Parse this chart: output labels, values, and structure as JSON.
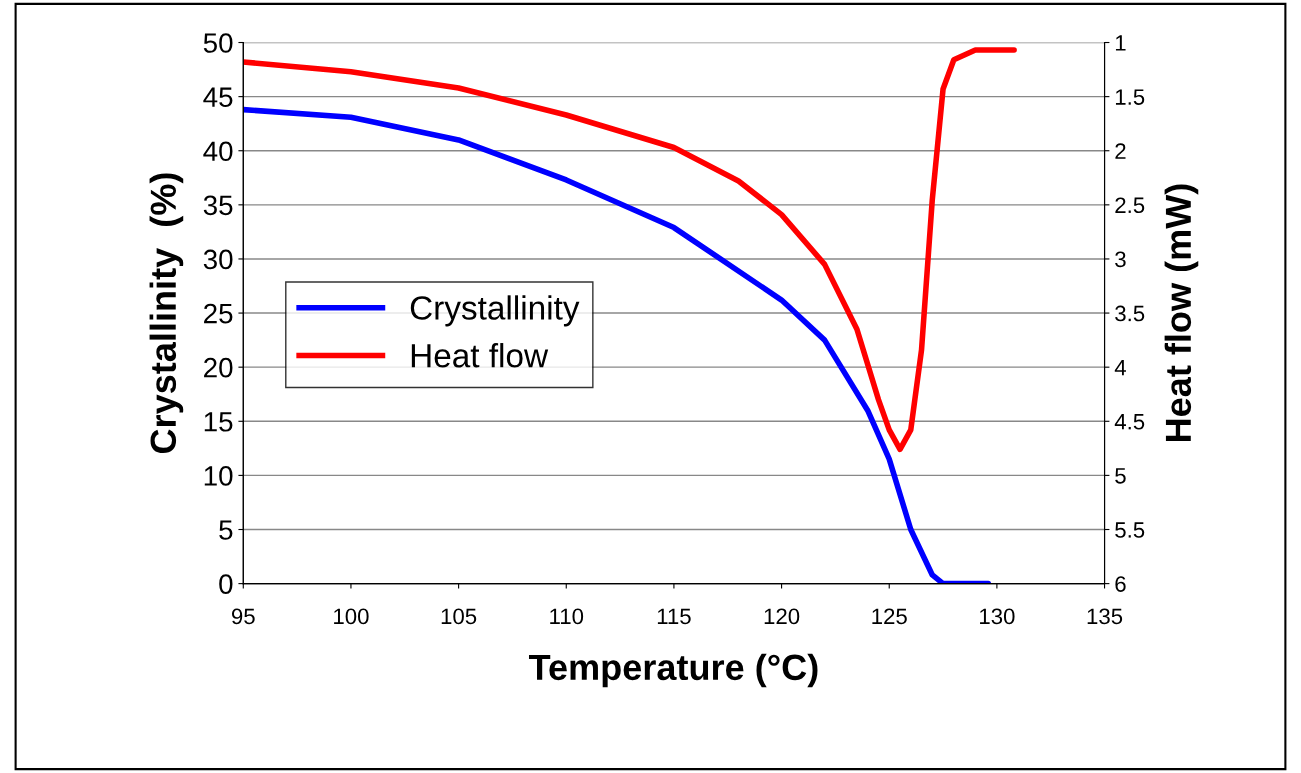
{
  "chart_data": {
    "type": "line",
    "xlabel": "Temperature (°C)",
    "ylabel": "Crystallinity  (%)",
    "y2label": "Heat flow (mW)",
    "xlim": [
      95,
      135
    ],
    "xticks": [
      95,
      100,
      105,
      110,
      115,
      120,
      125,
      130,
      135
    ],
    "ylim": [
      0,
      50
    ],
    "yticks": [
      0,
      5,
      10,
      15,
      20,
      25,
      30,
      35,
      40,
      45,
      50
    ],
    "y2lim": [
      6,
      1
    ],
    "y2ticks": [
      1,
      1.5,
      2,
      2.5,
      3,
      3.5,
      4,
      4.5,
      5,
      5.5,
      6
    ],
    "grid": "y",
    "legend": "left",
    "marker": "none",
    "line_style": "solid",
    "series": [
      {
        "name": "Crystallinity",
        "color": "#0000ff",
        "x": [
          95,
          100,
          105,
          110,
          115,
          120,
          122,
          124,
          125,
          126,
          127,
          127.5,
          129.6
        ],
        "values": [
          43.8,
          43.1,
          41.0,
          37.3,
          32.9,
          26.2,
          22.5,
          16.0,
          11.5,
          5.0,
          0.8,
          0,
          0
        ]
      },
      {
        "name": "Heat flow",
        "color": "#ff0000",
        "axis": "y2",
        "x": [
          95,
          100,
          105,
          110,
          115,
          118,
          120,
          122,
          123.5,
          124.5,
          125,
          125.5,
          126,
          126.5,
          127,
          127.5,
          128,
          129,
          130.8
        ],
        "values": [
          1.18,
          1.27,
          1.42,
          1.67,
          1.97,
          2.28,
          2.59,
          3.05,
          3.65,
          4.3,
          4.58,
          4.76,
          4.58,
          3.84,
          2.45,
          1.43,
          1.16,
          1.07,
          1.07
        ]
      }
    ]
  }
}
